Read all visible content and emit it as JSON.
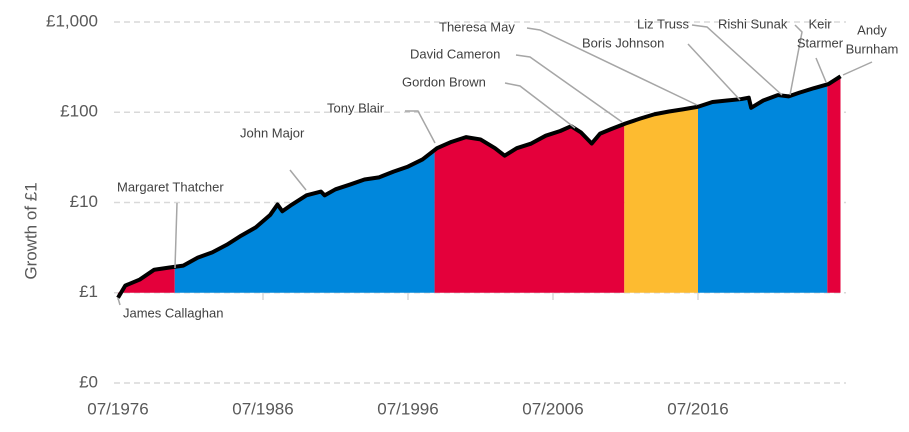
{
  "chart_data": {
    "type": "area",
    "y_label": "Growth of £1",
    "log_scale": true,
    "grid": true,
    "ylim": [
      0.1,
      1000
    ],
    "yticks": [
      {
        "value": 0.1,
        "label": "£0"
      },
      {
        "value": 1,
        "label": "£1"
      },
      {
        "value": 10,
        "label": "£10"
      },
      {
        "value": 100,
        "label": "£100"
      },
      {
        "value": 1000,
        "label": "£1,000"
      }
    ],
    "xlim": [
      "1976-07",
      "2026-07"
    ],
    "xticks": [
      {
        "value": "1976-07",
        "label": "07/1976"
      },
      {
        "value": "1986-07",
        "label": "07/1986"
      },
      {
        "value": "1996-07",
        "label": "07/1996"
      },
      {
        "value": "2006-07",
        "label": "07/2006"
      },
      {
        "value": "2016-07",
        "label": "07/2016"
      }
    ],
    "line_color": "#000000",
    "x": [
      "1976-07",
      "1977-01",
      "1978-01",
      "1979-01",
      "1980-01",
      "1981-01",
      "1982-01",
      "1983-01",
      "1984-01",
      "1985-01",
      "1986-01",
      "1987-01",
      "1987-07",
      "1987-11",
      "1988-07",
      "1989-07",
      "1990-07",
      "1990-10",
      "1991-07",
      "1992-07",
      "1993-07",
      "1994-07",
      "1995-07",
      "1996-07",
      "1997-07",
      "1998-07",
      "1999-07",
      "2000-07",
      "2001-07",
      "2002-07",
      "2003-03",
      "2004-01",
      "2005-01",
      "2006-01",
      "2007-01",
      "2007-10",
      "2008-06",
      "2009-03",
      "2009-10",
      "2010-07",
      "2011-07",
      "2012-07",
      "2013-07",
      "2014-07",
      "2015-07",
      "2016-07",
      "2017-07",
      "2018-07",
      "2019-07",
      "2020-01",
      "2020-03",
      "2021-01",
      "2022-01",
      "2022-10",
      "2023-07",
      "2024-07",
      "2025-07",
      "2026-05"
    ],
    "values": [
      0.88,
      1.2,
      1.4,
      1.8,
      1.9,
      2.0,
      2.45,
      2.8,
      3.4,
      4.3,
      5.3,
      7.3,
      9.5,
      8.0,
      9.5,
      12,
      13.2,
      12,
      14,
      15.8,
      18,
      19,
      22,
      25,
      30,
      40,
      47,
      53,
      50,
      40,
      33,
      40,
      45,
      55,
      62,
      70,
      60,
      45,
      58,
      65,
      75,
      85,
      95,
      102,
      108,
      115,
      130,
      135,
      140,
      145,
      112,
      135,
      155,
      150,
      165,
      185,
      205,
      250
    ],
    "bands": [
      {
        "start": "1976-07",
        "end": "1980-06",
        "color": "#e4003b"
      },
      {
        "start": "1980-06",
        "end": "1998-05",
        "color": "#0087dc"
      },
      {
        "start": "1998-05",
        "end": "2011-06",
        "color": "#e4003b"
      },
      {
        "start": "2011-06",
        "end": "2016-07",
        "color": "#fdbb30"
      },
      {
        "start": "2016-07",
        "end": "2025-06",
        "color": "#0087dc"
      },
      {
        "start": "2025-06",
        "end": "2026-05",
        "color": "#e4003b"
      }
    ],
    "annotations": [
      {
        "lines": [
          "James Callaghan"
        ]
      },
      {
        "lines": [
          "Margaret Thatcher"
        ]
      },
      {
        "lines": [
          "John Major"
        ]
      },
      {
        "lines": [
          "Tony Blair"
        ]
      },
      {
        "lines": [
          "Gordon Brown"
        ]
      },
      {
        "lines": [
          "David Cameron"
        ]
      },
      {
        "lines": [
          "Theresa May"
        ]
      },
      {
        "lines": [
          "Boris Johnson"
        ]
      },
      {
        "lines": [
          "Liz Truss"
        ]
      },
      {
        "lines": [
          "Rishi Sunak"
        ]
      },
      {
        "lines": [
          "Keir",
          "Starmer"
        ]
      },
      {
        "lines": [
          "Andy",
          "Burnham"
        ]
      }
    ]
  }
}
